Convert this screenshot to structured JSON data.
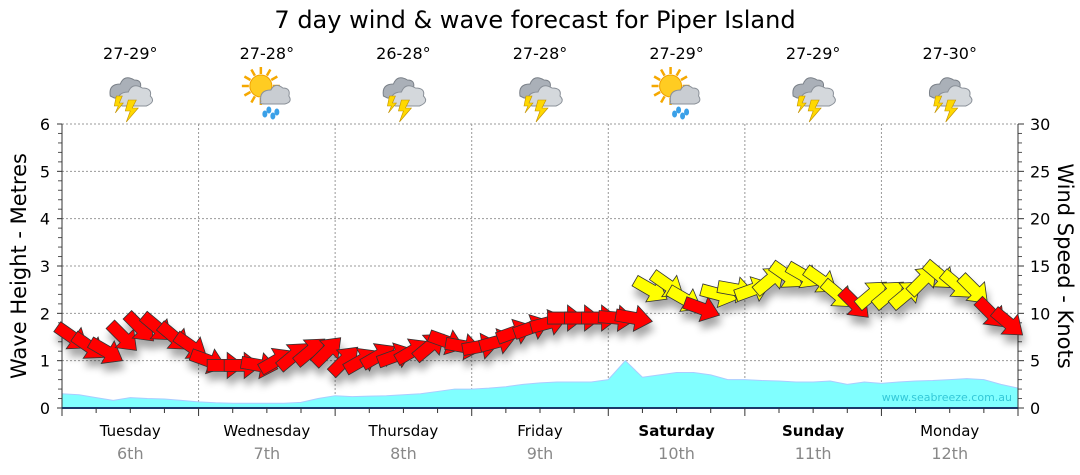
{
  "chart_data": {
    "type": "line",
    "title": "7 day wind & wave forecast for Piper Island",
    "ylabel_left": "Wave Height - Metres",
    "ylabel_right": "Wind Speed - Knots",
    "ylim_left": [
      0,
      6
    ],
    "ylim_right": [
      0,
      30
    ],
    "yticks_left": [
      "0",
      "1",
      "2",
      "3",
      "4",
      "5",
      "6"
    ],
    "yticks_right": [
      "0",
      "5",
      "10",
      "15",
      "20",
      "25",
      "30"
    ],
    "grid": true,
    "watermark": "www.seabreeze.com.au",
    "days": [
      {
        "name": "Tuesday",
        "date": "6th",
        "temp": "27-29°",
        "icon": "storm-cloud",
        "weekend": false
      },
      {
        "name": "Wednesday",
        "date": "7th",
        "temp": "27-28°",
        "icon": "sun-cloud-rain",
        "weekend": false
      },
      {
        "name": "Thursday",
        "date": "8th",
        "temp": "26-28°",
        "icon": "storm-cloud",
        "weekend": false
      },
      {
        "name": "Friday",
        "date": "9th",
        "temp": "27-28°",
        "icon": "storm-cloud",
        "weekend": false
      },
      {
        "name": "Saturday",
        "date": "10th",
        "temp": "27-29°",
        "icon": "sun-cloud-rain",
        "weekend": true
      },
      {
        "name": "Sunday",
        "date": "11th",
        "temp": "27-29°",
        "icon": "storm-cloud",
        "weekend": true
      },
      {
        "name": "Monday",
        "date": "12th",
        "temp": "27-30°",
        "icon": "storm-cloud",
        "weekend": false
      }
    ],
    "wave_height_m": [
      0.3,
      0.28,
      0.22,
      0.16,
      0.22,
      0.2,
      0.19,
      0.16,
      0.13,
      0.11,
      0.1,
      0.1,
      0.1,
      0.1,
      0.12,
      0.2,
      0.26,
      0.24,
      0.25,
      0.26,
      0.28,
      0.3,
      0.35,
      0.4,
      0.4,
      0.42,
      0.45,
      0.5,
      0.53,
      0.55,
      0.55,
      0.55,
      0.6,
      1.0,
      0.65,
      0.7,
      0.75,
      0.75,
      0.7,
      0.6,
      0.6,
      0.58,
      0.57,
      0.55,
      0.55,
      0.57,
      0.5,
      0.55,
      0.52,
      0.55,
      0.57,
      0.58,
      0.6,
      0.62,
      0.6,
      0.5,
      0.42
    ],
    "wind_color_threshold_knots": 11.5,
    "wind_colors": {
      "low": "#ff0000",
      "high": "#ffff00"
    },
    "wave_color": "#80ffff",
    "wind": [
      {
        "kn": 7.5,
        "dir": 35
      },
      {
        "kn": 6.5,
        "dir": 35
      },
      {
        "kn": 6,
        "dir": 30
      },
      {
        "kn": 7.5,
        "dir": 45
      },
      {
        "kn": 8.5,
        "dir": 45
      },
      {
        "kn": 8.5,
        "dir": 40
      },
      {
        "kn": 7.5,
        "dir": 40
      },
      {
        "kn": 6.5,
        "dir": 35
      },
      {
        "kn": 5,
        "dir": 20
      },
      {
        "kn": 4.5,
        "dir": 0
      },
      {
        "kn": 4.5,
        "dir": 0
      },
      {
        "kn": 4.5,
        "dir": 10
      },
      {
        "kn": 5,
        "dir": -30
      },
      {
        "kn": 5.5,
        "dir": -40
      },
      {
        "kn": 6,
        "dir": -40
      },
      {
        "kn": 6,
        "dir": -45
      },
      {
        "kn": 5,
        "dir": -45
      },
      {
        "kn": 5,
        "dir": -30
      },
      {
        "kn": 5.5,
        "dir": -30
      },
      {
        "kn": 5.5,
        "dir": -20
      },
      {
        "kn": 6,
        "dir": -30
      },
      {
        "kn": 6.5,
        "dir": -40
      },
      {
        "kn": 7,
        "dir": 20
      },
      {
        "kn": 6.5,
        "dir": 10
      },
      {
        "kn": 6.5,
        "dir": -10
      },
      {
        "kn": 7,
        "dir": -15
      },
      {
        "kn": 8,
        "dir": -20
      },
      {
        "kn": 8.5,
        "dir": -20
      },
      {
        "kn": 9,
        "dir": -15
      },
      {
        "kn": 9.5,
        "dir": 0
      },
      {
        "kn": 9.5,
        "dir": 0
      },
      {
        "kn": 9.5,
        "dir": 0
      },
      {
        "kn": 9.5,
        "dir": 5
      },
      {
        "kn": 9.5,
        "dir": 10
      },
      {
        "kn": 12.5,
        "dir": 30
      },
      {
        "kn": 13,
        "dir": 35
      },
      {
        "kn": 11.5,
        "dir": 30
      },
      {
        "kn": 10.5,
        "dir": 20
      },
      {
        "kn": 12,
        "dir": 15
      },
      {
        "kn": 12.5,
        "dir": 10
      },
      {
        "kn": 12.5,
        "dir": -20
      },
      {
        "kn": 13.5,
        "dir": -40
      },
      {
        "kn": 14,
        "dir": 35
      },
      {
        "kn": 14,
        "dir": 30
      },
      {
        "kn": 13.5,
        "dir": 35
      },
      {
        "kn": 12,
        "dir": 40
      },
      {
        "kn": 11,
        "dir": 45
      },
      {
        "kn": 12,
        "dir": -40
      },
      {
        "kn": 12,
        "dir": -40
      },
      {
        "kn": 12,
        "dir": -40
      },
      {
        "kn": 13.5,
        "dir": -45
      },
      {
        "kn": 14,
        "dir": 40
      },
      {
        "kn": 13,
        "dir": 40
      },
      {
        "kn": 12.5,
        "dir": 45
      },
      {
        "kn": 10,
        "dir": 45
      },
      {
        "kn": 9,
        "dir": 40
      }
    ]
  }
}
